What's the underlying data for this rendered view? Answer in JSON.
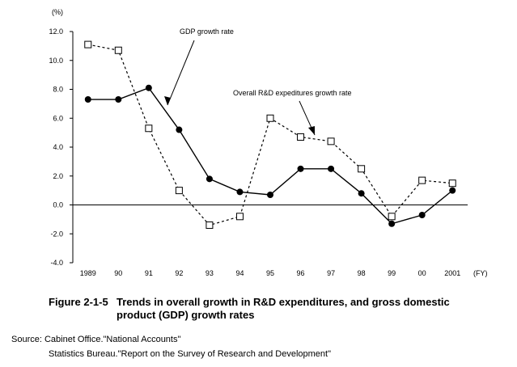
{
  "chart_data": {
    "type": "line",
    "y_unit_label": "(%)",
    "x_unit_label": "(FY)",
    "categories": [
      "1989",
      "90",
      "91",
      "92",
      "93",
      "94",
      "95",
      "96",
      "97",
      "98",
      "99",
      "00",
      "2001"
    ],
    "ylim": [
      -4.0,
      12.0
    ],
    "yticks": [
      "12.0",
      "10.0",
      "8.0",
      "6.0",
      "4.0",
      "2.0",
      "0.0",
      "-2.0",
      "-4.0"
    ],
    "ytick_values": [
      12,
      10,
      8,
      6,
      4,
      2,
      0,
      -2,
      -4
    ],
    "grid": false,
    "series": [
      {
        "name": "GDP growth rate",
        "style": "solid",
        "marker": "filled-circle",
        "values": [
          7.3,
          7.3,
          8.1,
          5.2,
          1.8,
          0.9,
          0.7,
          2.5,
          2.5,
          0.8,
          -1.3,
          -0.7,
          1.0
        ]
      },
      {
        "name": "Overall R&D expeditures growth rate",
        "style": "dotted",
        "marker": "open-square",
        "values": [
          11.1,
          10.7,
          5.3,
          1.0,
          -1.4,
          -0.8,
          6.0,
          4.7,
          4.4,
          2.5,
          -0.8,
          1.7,
          1.5
        ]
      }
    ],
    "annotations": [
      "GDP growth rate",
      "Overall R&D expeditures growth rate"
    ]
  },
  "caption": {
    "figure_number": "Figure 2-1-5",
    "title": "Trends in overall growth in R&D expenditures, and gross domestic product (GDP) growth rates"
  },
  "source": {
    "line1": "Source: Cabinet Office.\"National Accounts\"",
    "line2": "Statistics Bureau.\"Report on the Survey of Research and Development\""
  }
}
